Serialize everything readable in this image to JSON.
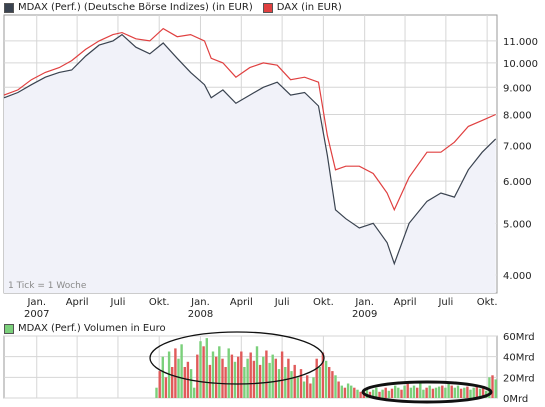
{
  "colors": {
    "mdax": "#3a4350",
    "dax": "#e04040",
    "vol_green": "#7bd07b",
    "vol_red": "#e05a5a",
    "panel_fill": "#f1f2f9",
    "grid": "#d6d6d6"
  },
  "chart_data": [
    {
      "type": "line",
      "legend": [
        {
          "name": "MDAX (Perf.) (Deutsche Börse Indizes) (in EUR)",
          "color": "#3a4350"
        },
        {
          "name": "DAX (in EUR)",
          "color": "#e04040"
        }
      ],
      "annotation": "1 Tick = 1 Woche",
      "y_scale": "log",
      "ylim": [
        3700,
        12300
      ],
      "y_ticks": [
        {
          "value": 4000,
          "label": "4.000"
        },
        {
          "value": 5000,
          "label": "5.000"
        },
        {
          "value": 6000,
          "label": "6.000"
        },
        {
          "value": 7000,
          "label": "7.000"
        },
        {
          "value": 8000,
          "label": "8.000"
        },
        {
          "value": 9000,
          "label": "9.000"
        },
        {
          "value": 10000,
          "label": "10.000"
        },
        {
          "value": 11000,
          "label": "11.000"
        }
      ],
      "x_ticks": [
        {
          "x": "2007-01-01",
          "label": "Jan.",
          "year": "2007"
        },
        {
          "x": "2007-04-01",
          "label": "April"
        },
        {
          "x": "2007-07-01",
          "label": "Juli"
        },
        {
          "x": "2007-10-01",
          "label": "Okt."
        },
        {
          "x": "2008-01-01",
          "label": "Jan.",
          "year": "2008"
        },
        {
          "x": "2008-04-01",
          "label": "April"
        },
        {
          "x": "2008-07-01",
          "label": "Juli"
        },
        {
          "x": "2008-10-01",
          "label": "Okt."
        },
        {
          "x": "2009-01-01",
          "label": "Jan.",
          "year": "2009"
        },
        {
          "x": "2009-04-01",
          "label": "April"
        },
        {
          "x": "2009-07-01",
          "label": "Juli"
        },
        {
          "x": "2009-10-01",
          "label": "Okt."
        }
      ],
      "xlim": [
        "2006-10-20",
        "2009-10-23"
      ],
      "grid": true,
      "legend_position": "top-left",
      "x": [
        "2006-10-20",
        "2006-11-20",
        "2006-12-20",
        "2007-01-20",
        "2007-02-20",
        "2007-03-20",
        "2007-04-20",
        "2007-05-20",
        "2007-06-20",
        "2007-07-10",
        "2007-08-10",
        "2007-09-10",
        "2007-10-10",
        "2007-11-10",
        "2007-12-10",
        "2008-01-10",
        "2008-01-25",
        "2008-02-20",
        "2008-03-20",
        "2008-04-20",
        "2008-05-20",
        "2008-06-20",
        "2008-07-20",
        "2008-08-20",
        "2008-09-20",
        "2008-10-10",
        "2008-10-28",
        "2008-11-20",
        "2008-12-20",
        "2009-01-20",
        "2009-02-20",
        "2009-03-08",
        "2009-04-10",
        "2009-05-20",
        "2009-06-20",
        "2009-07-20",
        "2009-08-20",
        "2009-09-20",
        "2009-10-20"
      ],
      "series": [
        {
          "name": "MDAX (Perf.) (Deutsche Börse Indizes) (in EUR)",
          "key": "mdax",
          "values": [
            8600,
            8800,
            9100,
            9400,
            9600,
            9700,
            10300,
            10800,
            11000,
            11300,
            10700,
            10400,
            10900,
            10200,
            9600,
            9100,
            8600,
            8900,
            8400,
            8700,
            9000,
            9200,
            8700,
            8800,
            8300,
            6700,
            5300,
            5100,
            4900,
            5000,
            4600,
            4200,
            5000,
            5500,
            5700,
            5600,
            6300,
            6800,
            7200
          ]
        },
        {
          "name": "DAX (in EUR)",
          "key": "dax",
          "values": [
            8700,
            8900,
            9300,
            9600,
            9800,
            10100,
            10600,
            11000,
            11300,
            11400,
            11100,
            11000,
            11600,
            11200,
            11300,
            11000,
            10200,
            10000,
            9400,
            9800,
            10000,
            9900,
            9300,
            9400,
            9200,
            7300,
            6300,
            6400,
            6400,
            6200,
            5700,
            5300,
            6100,
            6800,
            6800,
            7100,
            7600,
            7800,
            8000
          ]
        }
      ]
    },
    {
      "type": "bar",
      "legend": [
        {
          "name": "MDAX (Perf.) Volumen in Euro",
          "color": "#7bd07b"
        }
      ],
      "ylim": [
        0,
        60
      ],
      "y_ticks": [
        {
          "value": 0,
          "label": "0Mrd"
        },
        {
          "value": 20,
          "label": "20Mrd"
        },
        {
          "value": 40,
          "label": "40Mrd"
        },
        {
          "value": 60,
          "label": "60Mrd"
        }
      ],
      "x": [
        "2007-09-25",
        "2007-10-02",
        "2007-10-09",
        "2007-10-16",
        "2007-10-23",
        "2007-10-30",
        "2007-11-06",
        "2007-11-13",
        "2007-11-20",
        "2007-11-27",
        "2007-12-04",
        "2007-12-11",
        "2007-12-18",
        "2007-12-25",
        "2008-01-01",
        "2008-01-08",
        "2008-01-15",
        "2008-01-22",
        "2008-01-29",
        "2008-02-05",
        "2008-02-12",
        "2008-02-19",
        "2008-02-26",
        "2008-03-04",
        "2008-03-11",
        "2008-03-18",
        "2008-03-25",
        "2008-04-01",
        "2008-04-08",
        "2008-04-15",
        "2008-04-22",
        "2008-04-29",
        "2008-05-06",
        "2008-05-13",
        "2008-05-20",
        "2008-05-27",
        "2008-06-03",
        "2008-06-10",
        "2008-06-17",
        "2008-06-24",
        "2008-07-01",
        "2008-07-08",
        "2008-07-15",
        "2008-07-22",
        "2008-07-29",
        "2008-08-05",
        "2008-08-12",
        "2008-08-19",
        "2008-08-26",
        "2008-09-02",
        "2008-09-09",
        "2008-09-16",
        "2008-09-23",
        "2008-09-30",
        "2008-10-07",
        "2008-10-14",
        "2008-10-21",
        "2008-10-28",
        "2008-11-04",
        "2008-11-11",
        "2008-11-18",
        "2008-11-25",
        "2008-12-02",
        "2008-12-09",
        "2008-12-16",
        "2008-12-23",
        "2008-12-30",
        "2009-01-06",
        "2009-01-13",
        "2009-01-20",
        "2009-01-27",
        "2009-02-03",
        "2009-02-10",
        "2009-02-17",
        "2009-02-24",
        "2009-03-03",
        "2009-03-10",
        "2009-03-17",
        "2009-03-24",
        "2009-03-31",
        "2009-04-07",
        "2009-04-14",
        "2009-04-21",
        "2009-04-28",
        "2009-05-05",
        "2009-05-12",
        "2009-05-19",
        "2009-05-26",
        "2009-06-02",
        "2009-06-09",
        "2009-06-16",
        "2009-06-23",
        "2009-06-30",
        "2009-07-07",
        "2009-07-14",
        "2009-07-21",
        "2009-07-28",
        "2009-08-04",
        "2009-08-11",
        "2009-08-18",
        "2009-08-25",
        "2009-09-01",
        "2009-09-08",
        "2009-09-15",
        "2009-09-22",
        "2009-09-29",
        "2009-10-06",
        "2009-10-13",
        "2009-10-20"
      ],
      "values": [
        10,
        26,
        40,
        20,
        45,
        30,
        48,
        38,
        52,
        30,
        35,
        28,
        10,
        42,
        55,
        50,
        58,
        32,
        45,
        40,
        50,
        38,
        30,
        48,
        42,
        35,
        40,
        45,
        30,
        38,
        44,
        36,
        50,
        32,
        40,
        46,
        34,
        42,
        38,
        28,
        45,
        30,
        38,
        26,
        32,
        20,
        28,
        16,
        22,
        14,
        20,
        38,
        30,
        44,
        36,
        30,
        26,
        22,
        16,
        12,
        10,
        14,
        12,
        10,
        8,
        6,
        8,
        10,
        6,
        8,
        10,
        6,
        8,
        10,
        7,
        9,
        12,
        10,
        8,
        12,
        14,
        10,
        12,
        10,
        14,
        8,
        10,
        12,
        9,
        10,
        11,
        12,
        10,
        14,
        12,
        10,
        12,
        9,
        10,
        11,
        8,
        10,
        12,
        9,
        10,
        7,
        20,
        22,
        18
      ],
      "colors": [
        "g",
        "r",
        "g",
        "r",
        "g",
        "r",
        "r",
        "g",
        "g",
        "r",
        "r",
        "g",
        "g",
        "r",
        "g",
        "r",
        "g",
        "r",
        "g",
        "r",
        "g",
        "r",
        "r",
        "g",
        "r",
        "g",
        "r",
        "r",
        "g",
        "g",
        "r",
        "r",
        "g",
        "r",
        "g",
        "r",
        "g",
        "g",
        "r",
        "g",
        "r",
        "g",
        "r",
        "g",
        "r",
        "g",
        "r",
        "g",
        "r",
        "r",
        "g",
        "r",
        "g",
        "r",
        "g",
        "r",
        "r",
        "g",
        "r",
        "g",
        "r",
        "g",
        "g",
        "r",
        "g",
        "r",
        "r",
        "g",
        "r",
        "g",
        "g",
        "r",
        "g",
        "r",
        "g",
        "r",
        "g",
        "g",
        "r",
        "g",
        "r",
        "g",
        "g",
        "r",
        "g",
        "g",
        "r",
        "g",
        "r",
        "g",
        "g",
        "r",
        "g",
        "g",
        "r",
        "g",
        "g",
        "r",
        "g",
        "r",
        "g",
        "g",
        "r",
        "g",
        "r",
        "g",
        "g",
        "r",
        "g"
      ]
    }
  ]
}
